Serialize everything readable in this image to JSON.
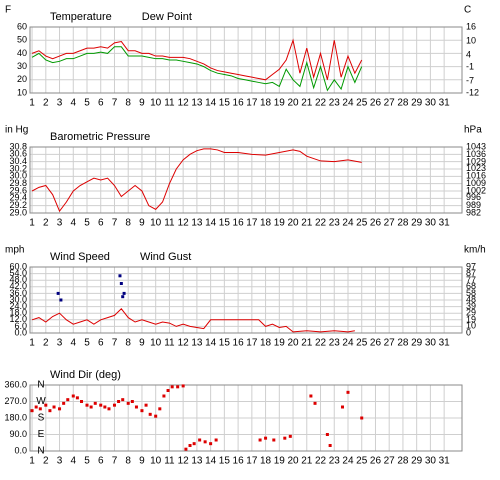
{
  "chart_data": [
    {
      "type": "line",
      "ylabel": "F",
      "y2label": "C",
      "x": [
        1,
        1.5,
        2,
        2.5,
        3,
        3.5,
        4,
        4.5,
        5,
        5.5,
        6,
        6.5,
        7,
        7.5,
        8,
        8.5,
        9,
        9.5,
        10,
        10.5,
        11,
        11.5,
        12,
        12.5,
        13,
        13.5,
        14,
        14.5,
        15,
        15.5,
        16,
        16.5,
        17,
        17.5,
        18,
        18.5,
        19,
        19.5,
        20,
        20.5,
        21,
        21.5,
        22,
        22.5,
        23,
        23.5,
        24,
        24.5,
        25
      ],
      "series": [
        {
          "name": "Temperature",
          "color": "#dd0000",
          "values": [
            40,
            42,
            38,
            36,
            38,
            40,
            40,
            42,
            44,
            44,
            45,
            44,
            48,
            49,
            42,
            42,
            40,
            40,
            38,
            38,
            37,
            37,
            37,
            36,
            34,
            32,
            29,
            27,
            26,
            25,
            24,
            23,
            22,
            21,
            20,
            24,
            28,
            35,
            50,
            25,
            44,
            22,
            40,
            20,
            50,
            22,
            38,
            25,
            35
          ]
        },
        {
          "name": "Dew Point",
          "color": "#009900",
          "values": [
            37,
            40,
            35,
            33,
            34,
            36,
            36,
            38,
            40,
            40,
            41,
            40,
            45,
            45,
            38,
            38,
            38,
            37,
            36,
            36,
            35,
            35,
            34,
            33,
            32,
            30,
            27,
            25,
            24,
            23,
            21,
            20,
            19,
            18,
            17,
            18,
            15,
            28,
            20,
            15,
            33,
            14,
            30,
            12,
            20,
            13,
            30,
            18,
            30
          ]
        }
      ],
      "xlim": [
        0.85,
        32.3
      ],
      "xticks": [
        1,
        2,
        3,
        4,
        5,
        6,
        7,
        8,
        9,
        10,
        11,
        12,
        13,
        14,
        15,
        16,
        17,
        18,
        19,
        20,
        21,
        22,
        23,
        24,
        25,
        26,
        27,
        28,
        29,
        30,
        31
      ],
      "ylim": [
        10,
        60
      ],
      "yticks": [
        10,
        20,
        30,
        40,
        50,
        60
      ],
      "y2lim": [
        -12,
        16
      ],
      "y2ticks": [
        -12,
        -7,
        -1,
        4,
        10,
        16
      ],
      "grid": true
    },
    {
      "type": "line",
      "ylabel": "in Hg",
      "y2label": "hPa",
      "x": [
        1,
        1.5,
        2,
        2.5,
        3,
        3.5,
        4,
        4.5,
        5,
        5.5,
        6,
        6.5,
        7,
        7.5,
        8,
        8.5,
        9,
        9.5,
        10,
        10.5,
        11,
        11.5,
        12,
        12.5,
        13,
        13.5,
        14,
        14.5,
        15,
        16,
        17,
        18,
        19,
        20,
        20.5,
        21,
        22,
        23,
        24,
        25
      ],
      "series": [
        {
          "name": "Barometric Pressure",
          "color": "#dd0000",
          "values": [
            29.6,
            29.7,
            29.75,
            29.5,
            29.05,
            29.3,
            29.6,
            29.75,
            29.85,
            29.95,
            29.9,
            29.95,
            29.75,
            29.45,
            29.6,
            29.75,
            29.6,
            29.2,
            29.1,
            29.3,
            29.8,
            30.2,
            30.45,
            30.6,
            30.7,
            30.75,
            30.75,
            30.72,
            30.65,
            30.65,
            30.6,
            30.58,
            30.65,
            30.72,
            30.68,
            30.55,
            30.42,
            30.4,
            30.45,
            30.38
          ]
        }
      ],
      "xlim": [
        0.85,
        32.3
      ],
      "xticks": [
        1,
        2,
        3,
        4,
        5,
        6,
        7,
        8,
        9,
        10,
        11,
        12,
        13,
        14,
        15,
        16,
        17,
        18,
        19,
        20,
        21,
        22,
        23,
        24,
        25,
        26,
        27,
        28,
        29,
        30,
        31
      ],
      "ylim": [
        29.0,
        30.8
      ],
      "yticks": [
        {
          "value": 29,
          "label": "29.0"
        },
        29.2,
        29.4,
        29.6,
        29.8,
        {
          "value": 30,
          "label": "30.0"
        },
        30.2,
        30.4,
        30.6,
        30.8
      ],
      "y2lim": [
        982,
        1043
      ],
      "y2ticks": [
        982,
        989,
        996,
        1002,
        1009,
        1016,
        1023,
        1029,
        1036,
        1043
      ],
      "grid": true
    },
    {
      "type": "line",
      "ylabel": "mph",
      "y2label": "km/h",
      "x": [
        1,
        1.5,
        2,
        2.5,
        3,
        3.5,
        4,
        4.5,
        5,
        5.5,
        6,
        6.5,
        7,
        7.5,
        8,
        8.5,
        9,
        9.5,
        10,
        10.5,
        11,
        11.5,
        12,
        12.5,
        13,
        13.5,
        14,
        15,
        16,
        17,
        17.5,
        18,
        18.5,
        19,
        19.5,
        20,
        21,
        22,
        23,
        24,
        24.5
      ],
      "series": [
        {
          "name": "Wind Speed",
          "color": "#dd0000",
          "values": [
            12,
            14,
            10,
            15,
            18,
            12,
            8,
            10,
            12,
            8,
            12,
            14,
            16,
            22,
            14,
            10,
            12,
            10,
            8,
            10,
            9,
            6,
            8,
            6,
            5,
            4,
            12,
            12,
            12,
            12,
            12,
            6,
            8,
            5,
            6,
            1,
            2,
            1,
            2,
            1,
            2
          ]
        },
        {
          "name": "Wind Gust",
          "color": "#000080",
          "style": "points",
          "x": [
            2.9,
            3.1,
            7.4,
            7.5,
            7.6,
            7.7
          ],
          "values": [
            36,
            30,
            52,
            45,
            33,
            36
          ]
        }
      ],
      "xlim": [
        0.85,
        32.3
      ],
      "xticks": [
        1,
        2,
        3,
        4,
        5,
        6,
        7,
        8,
        9,
        10,
        11,
        12,
        13,
        14,
        15,
        16,
        17,
        18,
        19,
        20,
        21,
        22,
        23,
        24,
        25,
        26,
        27,
        28,
        29,
        30,
        31
      ],
      "ylim": [
        0,
        60
      ],
      "yticks": [
        {
          "value": 0,
          "label": "0.0"
        },
        {
          "value": 6,
          "label": "6.0"
        },
        {
          "value": 12,
          "label": "12.0"
        },
        {
          "value": 18,
          "label": "18.0"
        },
        {
          "value": 24,
          "label": "24.0"
        },
        {
          "value": 30,
          "label": "30.0"
        },
        {
          "value": 36,
          "label": "36.0"
        },
        {
          "value": 42,
          "label": "42.0"
        },
        {
          "value": 48,
          "label": "48.0"
        },
        {
          "value": 54,
          "label": "54.0"
        },
        {
          "value": 60,
          "label": "60.0"
        }
      ],
      "y2lim": [
        0,
        97
      ],
      "y2ticks": [
        0,
        10,
        19,
        29,
        39,
        48,
        58,
        68,
        77,
        87,
        97
      ],
      "grid": true
    },
    {
      "type": "scatter",
      "series": [
        {
          "name": "Wind Dir (deg)",
          "color": "#dd0000",
          "style": "points",
          "x": [
            1,
            1.3,
            1.6,
            2,
            2.3,
            2.6,
            3,
            3.3,
            3.6,
            4,
            4.3,
            4.6,
            5,
            5.3,
            5.6,
            6,
            6.3,
            6.6,
            7,
            7.3,
            7.6,
            8,
            8.3,
            8.6,
            9,
            9.3,
            9.6,
            10,
            10.3,
            10.6,
            10.9,
            11.2,
            11.6,
            12,
            12.2,
            12.5,
            12.8,
            13.2,
            13.6,
            14,
            14.4,
            17.6,
            18,
            18.6,
            19.4,
            19.8,
            21.3,
            21.6,
            22.5,
            22.7,
            23.6,
            24,
            25
          ],
          "values": [
            220,
            240,
            230,
            250,
            220,
            240,
            230,
            260,
            280,
            300,
            290,
            270,
            250,
            240,
            260,
            250,
            240,
            230,
            250,
            270,
            280,
            260,
            270,
            240,
            220,
            250,
            200,
            190,
            230,
            300,
            330,
            350,
            350,
            355,
            10,
            30,
            40,
            60,
            50,
            40,
            60,
            60,
            70,
            60,
            70,
            80,
            300,
            260,
            90,
            30,
            240,
            320,
            180
          ]
        }
      ],
      "direction_labels": [
        {
          "value": 360,
          "label": "N"
        },
        {
          "value": 270,
          "label": "W"
        },
        {
          "value": 180,
          "label": "S"
        },
        {
          "value": 90,
          "label": "E"
        },
        {
          "value": 0,
          "label": "N"
        }
      ],
      "xlim": [
        0.85,
        32.3
      ],
      "xticks": [
        1,
        2,
        3,
        4,
        5,
        6,
        7,
        8,
        9,
        10,
        11,
        12,
        13,
        14,
        15,
        16,
        17,
        18,
        19,
        20,
        21,
        22,
        23,
        24,
        25,
        26,
        27,
        28,
        29,
        30,
        31
      ],
      "ylim": [
        0,
        360
      ],
      "yticks": [
        {
          "value": 0,
          "label": "0.0"
        },
        {
          "value": 90,
          "label": "90.0"
        },
        {
          "value": 180,
          "label": "180.0"
        },
        {
          "value": 270,
          "label": "270.0"
        },
        {
          "value": 360,
          "label": "360.0"
        }
      ],
      "grid": true
    }
  ]
}
